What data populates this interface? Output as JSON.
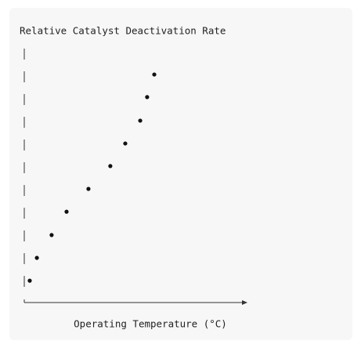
{
  "chart_data": {
    "type": "scatter",
    "title": "Relative Catalyst Deactivation Rate",
    "x_label": "Operating Temperature (°C)",
    "x": [
      2.8,
      6.0,
      12.6,
      19.3,
      29.1,
      38.9,
      45.6,
      52.3,
      55.4,
      58.6
    ],
    "values": [
      8.4,
      17.5,
      26.6,
      35.9,
      45.0,
      54.1,
      63.1,
      72.2,
      81.6,
      90.6
    ],
    "xlim": [
      0,
      100
    ],
    "ylim": [
      0,
      100
    ],
    "color": "#111111"
  }
}
